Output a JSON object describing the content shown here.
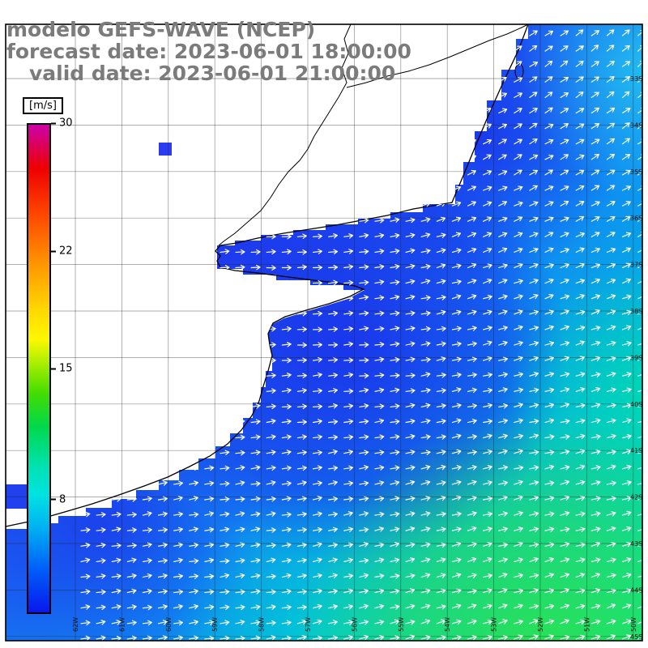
{
  "header": {
    "line1": "modelo GEFS-WAVE (NCEP)",
    "line2": "forecast date: 2023-06-01 18:00:00",
    "line3": "valid date: 2023-06-01 21:00:00",
    "text_color": "#7b7b7b"
  },
  "colorbar": {
    "unit_label": "[m/s]",
    "ticks": [
      {
        "value": "30",
        "pos": 0.0
      },
      {
        "value": "22",
        "pos": 0.261
      },
      {
        "value": "15",
        "pos": 0.5
      },
      {
        "value": "8",
        "pos": 0.767
      }
    ],
    "gradient": [
      {
        "color": "#cc00aa",
        "at": 0
      },
      {
        "color": "#ee0000",
        "at": 9
      },
      {
        "color": "#ff4400",
        "at": 18
      },
      {
        "color": "#ff9100",
        "at": 28
      },
      {
        "color": "#ffd800",
        "at": 38
      },
      {
        "color": "#fcf800",
        "at": 44
      },
      {
        "color": "#a8ee00",
        "at": 49
      },
      {
        "color": "#44dd00",
        "at": 55
      },
      {
        "color": "#00d84c",
        "at": 62
      },
      {
        "color": "#00e2b0",
        "at": 70
      },
      {
        "color": "#00e2e2",
        "at": 76
      },
      {
        "color": "#00aef2",
        "at": 83
      },
      {
        "color": "#0060f8",
        "at": 91
      },
      {
        "color": "#0818ee",
        "at": 100
      }
    ]
  },
  "map": {
    "lon_labels": [
      "62W",
      "61W",
      "60W",
      "59W",
      "58W",
      "57W",
      "56W",
      "55W",
      "54W",
      "53W",
      "52W",
      "51W",
      "50W"
    ],
    "lat_labels": [
      "33S",
      "34S",
      "35S",
      "36S",
      "37S",
      "38S",
      "39S",
      "40S",
      "41S",
      "42S",
      "43S",
      "44S",
      "45S"
    ],
    "arrow_color": "#ffffff",
    "coast_color": "#000000",
    "land_color": "#ffffff"
  }
}
